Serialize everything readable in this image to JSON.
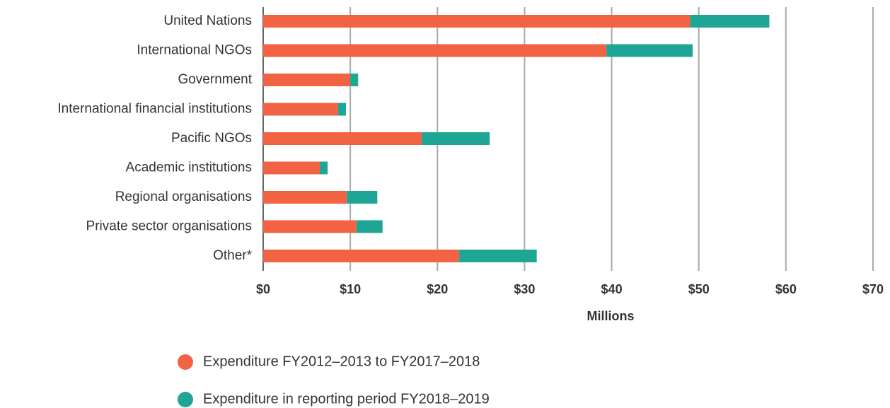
{
  "chart_data": {
    "type": "stacked_bar_horizontal",
    "x_label": "Millions",
    "categories": [
      "United Nations",
      "International NGOs",
      "Government",
      "International financial institutions",
      "Pacific NGOs",
      "Academic institutions",
      "Regional organisations",
      "Private sector organisations",
      "Other*"
    ],
    "series": [
      {
        "name": "Expenditure FY2012–2013 to FY2017–2018",
        "color": "#f26344",
        "values": [
          49.0,
          39.4,
          10.0,
          8.6,
          18.2,
          6.5,
          9.6,
          10.7,
          22.5
        ]
      },
      {
        "name": "Expenditure in reporting period FY2018–2019",
        "color": "#1fa596",
        "values": [
          9.1,
          9.9,
          0.9,
          0.9,
          7.8,
          0.9,
          3.5,
          3.0,
          8.9
        ]
      }
    ],
    "xlim": [
      0,
      70
    ],
    "xticks": [
      {
        "value": 0,
        "label": "$0"
      },
      {
        "value": 10,
        "label": "$10"
      },
      {
        "value": 20,
        "label": "$20"
      },
      {
        "value": 30,
        "label": "$30"
      },
      {
        "value": 40,
        "label": "$40"
      },
      {
        "value": 50,
        "label": "$50"
      },
      {
        "value": 60,
        "label": "$60"
      },
      {
        "value": 70,
        "label": "$70"
      }
    ],
    "grid": true
  }
}
